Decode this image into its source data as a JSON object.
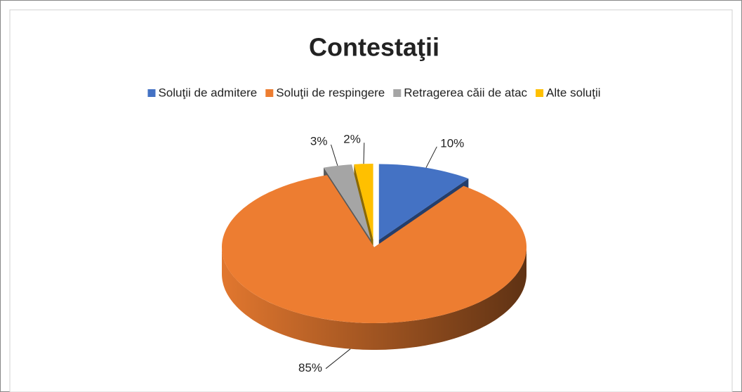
{
  "chart_data": {
    "type": "pie",
    "title": "Contestaţii",
    "categories": [
      "Soluţii de admitere",
      "Soluţii de respingere",
      "Retragerea căii de atac",
      "Alte soluţii"
    ],
    "values": [
      10,
      85,
      3,
      2
    ],
    "value_labels": [
      "10%",
      "85%",
      "3%",
      "2%"
    ],
    "colors": [
      "#4472c4",
      "#ed7d31",
      "#a5a5a5",
      "#ffc000"
    ],
    "legend": "top"
  }
}
